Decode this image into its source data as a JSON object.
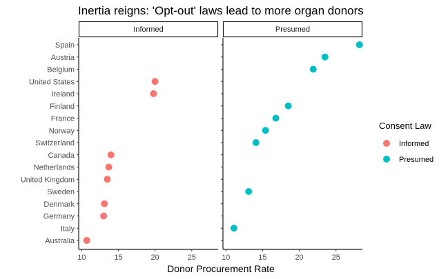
{
  "chart_data": {
    "type": "scatter",
    "title": "Inertia reigns: 'Opt-out' laws lead to more organ donors",
    "xlabel": "Donor Procurement Rate",
    "ylabel": "",
    "xlim": [
      9.6,
      28.6
    ],
    "x_ticks": [
      "10",
      "15",
      "20",
      "25"
    ],
    "facets": [
      "Informed",
      "Presumed"
    ],
    "categories": [
      "Spain",
      "Austria",
      "Belgium",
      "United States",
      "Ireland",
      "Finland",
      "France",
      "Norway",
      "Switzerland",
      "Canada",
      "Netherlands",
      "United Kingdom",
      "Sweden",
      "Denmark",
      "Germany",
      "Italy",
      "Australia"
    ],
    "legend": {
      "title": "Consent Law",
      "position": "right",
      "entries": [
        {
          "label": "Informed",
          "color": "#f8766d"
        },
        {
          "label": "Presumed",
          "color": "#00bfc4"
        }
      ]
    },
    "points": [
      {
        "country": "Spain",
        "facet": "Presumed",
        "x": 28.2
      },
      {
        "country": "Austria",
        "facet": "Presumed",
        "x": 23.5
      },
      {
        "country": "Belgium",
        "facet": "Presumed",
        "x": 21.9
      },
      {
        "country": "United States",
        "facet": "Informed",
        "x": 20.0
      },
      {
        "country": "Ireland",
        "facet": "Informed",
        "x": 19.8
      },
      {
        "country": "Finland",
        "facet": "Presumed",
        "x": 18.5
      },
      {
        "country": "France",
        "facet": "Presumed",
        "x": 16.8
      },
      {
        "country": "Norway",
        "facet": "Presumed",
        "x": 15.4
      },
      {
        "country": "Switzerland",
        "facet": "Presumed",
        "x": 14.1
      },
      {
        "country": "Canada",
        "facet": "Informed",
        "x": 14.0
      },
      {
        "country": "Netherlands",
        "facet": "Informed",
        "x": 13.7
      },
      {
        "country": "United Kingdom",
        "facet": "Informed",
        "x": 13.5
      },
      {
        "country": "Sweden",
        "facet": "Presumed",
        "x": 13.1
      },
      {
        "country": "Denmark",
        "facet": "Informed",
        "x": 13.1
      },
      {
        "country": "Germany",
        "facet": "Informed",
        "x": 13.0
      },
      {
        "country": "Italy",
        "facet": "Presumed",
        "x": 11.1
      },
      {
        "country": "Australia",
        "facet": "Informed",
        "x": 10.7
      }
    ],
    "grid": false
  }
}
